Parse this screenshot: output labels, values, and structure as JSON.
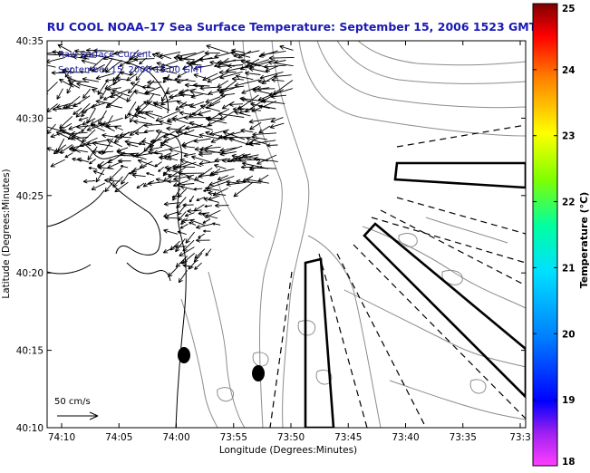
{
  "title": "RU COOL  NOAA–17  Sea Surface Temperature:  September 15, 2006 1523 GMT",
  "overlay": {
    "line1": "Raw Surface Current",
    "line2": "September 15, 2006 15:00 GMT"
  },
  "scale_label": "50 cm/s",
  "axes": {
    "xlabel": "Longitude (Degrees:Minutes)",
    "ylabel": "Latitude (Degrees:Minutes)",
    "x_ticks": [
      "74:10",
      "74:05",
      "74:00",
      "73:55",
      "73:50",
      "73:45",
      "73:40",
      "73:35",
      "73:3"
    ],
    "y_ticks": [
      "40:35",
      "40:30",
      "40:25",
      "40:20",
      "40:15",
      "40:10"
    ]
  },
  "colorbar": {
    "label": "Temperature (°C)",
    "ticks": [
      "25",
      "24",
      "23",
      "22",
      "21",
      "20",
      "19",
      "18"
    ],
    "min": 18,
    "max": 25
  },
  "colors": {
    "title": "#1a1ab4",
    "overlay_text": "#1a1aa0",
    "vectors": "#000000",
    "contours": "#8c8c8c"
  }
}
